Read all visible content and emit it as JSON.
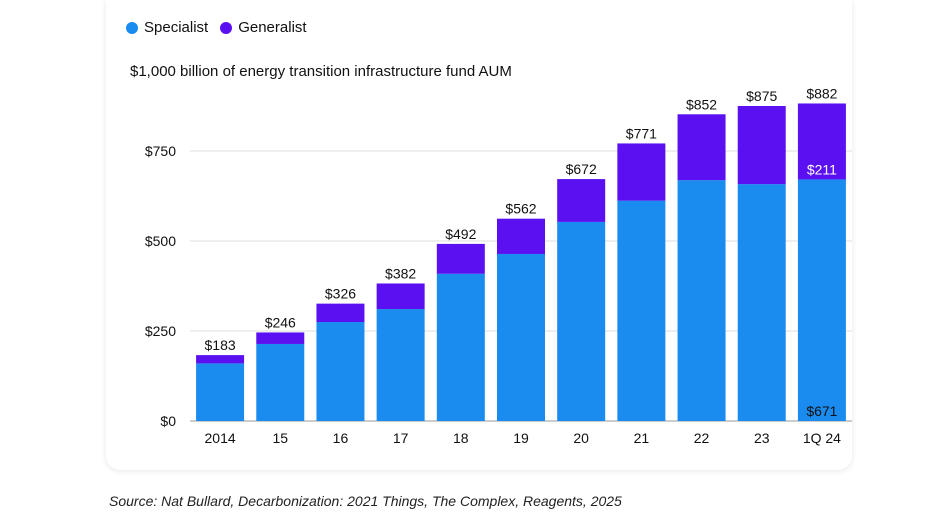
{
  "legend": [
    {
      "label": "Specialist",
      "color": "#1a8cf0"
    },
    {
      "label": "Generalist",
      "color": "#5a10f0"
    }
  ],
  "source": "Source: Nat Bullard, Decarbonization: 2021 Things, The Complex, Reagents, 2025",
  "chart_data": {
    "type": "bar",
    "stacked": true,
    "title": "",
    "subtitle": "$1,000 billion of energy transition infrastructure fund AUM",
    "xlabel": "",
    "ylabel": "",
    "categories": [
      "2014",
      "15",
      "16",
      "17",
      "18",
      "19",
      "20",
      "21",
      "22",
      "23",
      "1Q 24"
    ],
    "series": [
      {
        "name": "Specialist",
        "color": "#1a8cf0",
        "values": [
          160,
          214,
          275,
          311,
          409,
          464,
          553,
          612,
          669,
          658,
          671
        ]
      },
      {
        "name": "Generalist",
        "color": "#5a10f0",
        "values": [
          23,
          32,
          51,
          71,
          83,
          98,
          119,
          159,
          183,
          217,
          211
        ]
      }
    ],
    "totals": [
      "$183",
      "$246",
      "$326",
      "$382",
      "$492",
      "$562",
      "$672",
      "$771",
      "$852",
      "$875",
      "$882"
    ],
    "inner_labels": {
      "category": "1Q 24",
      "specialist": "$671",
      "generalist": "$211"
    },
    "yticks": [
      0,
      250,
      500,
      750
    ],
    "ytick_labels": [
      "$0",
      "$250",
      "$500",
      "$750"
    ],
    "ylim": [
      0,
      900
    ],
    "grid": true,
    "legend_position": "top-left"
  }
}
